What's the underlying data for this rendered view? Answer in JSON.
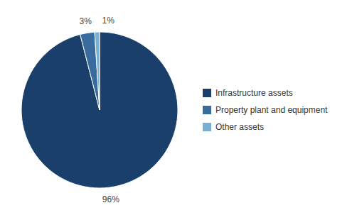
{
  "chart_data": {
    "type": "pie",
    "categories": [
      "Infrastructure assets",
      "Property plant and equipment",
      "Other assets"
    ],
    "values": [
      96,
      3,
      1
    ],
    "value_labels": [
      "96%",
      "3%",
      "1%"
    ],
    "colors": [
      "#1b3f6b",
      "#3a6b9e",
      "#7aafd4"
    ],
    "data_labels": true,
    "legend": "right"
  }
}
